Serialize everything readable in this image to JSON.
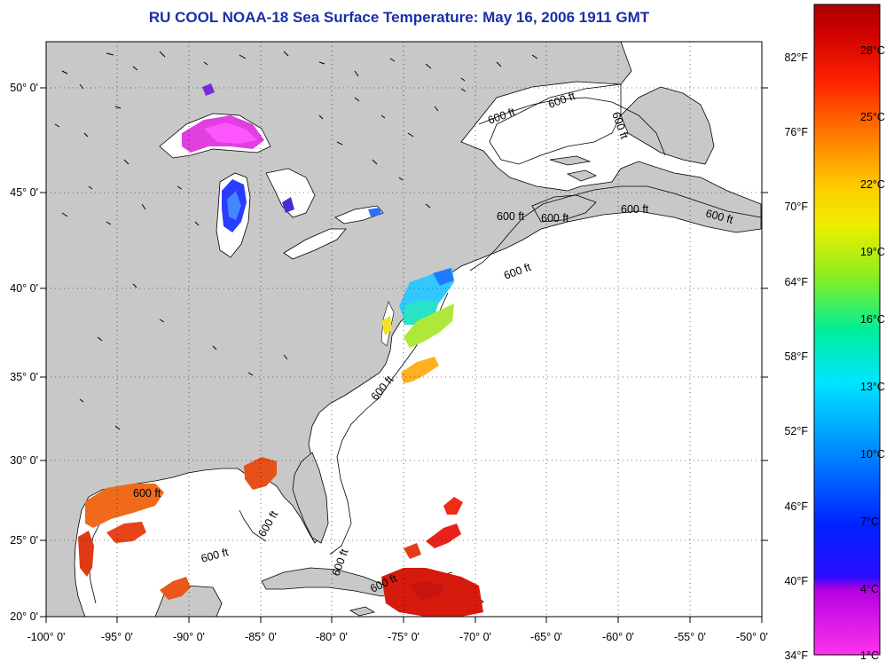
{
  "title": "RU COOL  NOAA-18  Sea Surface Temperature:  May 16, 2006 1911 GMT",
  "map": {
    "lon_labels": [
      "-100° 0'",
      "-95° 0'",
      "-90° 0'",
      "-85° 0'",
      "-80° 0'",
      "-75° 0'",
      "-70° 0'",
      "-65° 0'",
      "-60° 0'",
      "-55° 0'",
      "-50° 0'"
    ],
    "lat_labels": [
      "50° 0'",
      "45° 0'",
      "40° 0'",
      "35° 0'",
      "30° 0'",
      "25° 0'",
      "20° 0'"
    ],
    "contour_label": "600 ft"
  },
  "legend": {
    "fahrenheit_labels": [
      "82°F",
      "76°F",
      "70°F",
      "64°F",
      "58°F",
      "52°F",
      "46°F",
      "40°F",
      "34°F"
    ],
    "celsius_labels": [
      "28°C",
      "25°C",
      "22°C",
      "19°C",
      "16°C",
      "13°C",
      "10°C",
      "7°C",
      "4°C",
      "1°C"
    ]
  },
  "colors": {
    "land": "#c8c8c8",
    "ocean": "#ffffff",
    "title": "#1a2fa8",
    "warm_sst": "#e03a14",
    "gulf_sst": "#f06a1c"
  }
}
